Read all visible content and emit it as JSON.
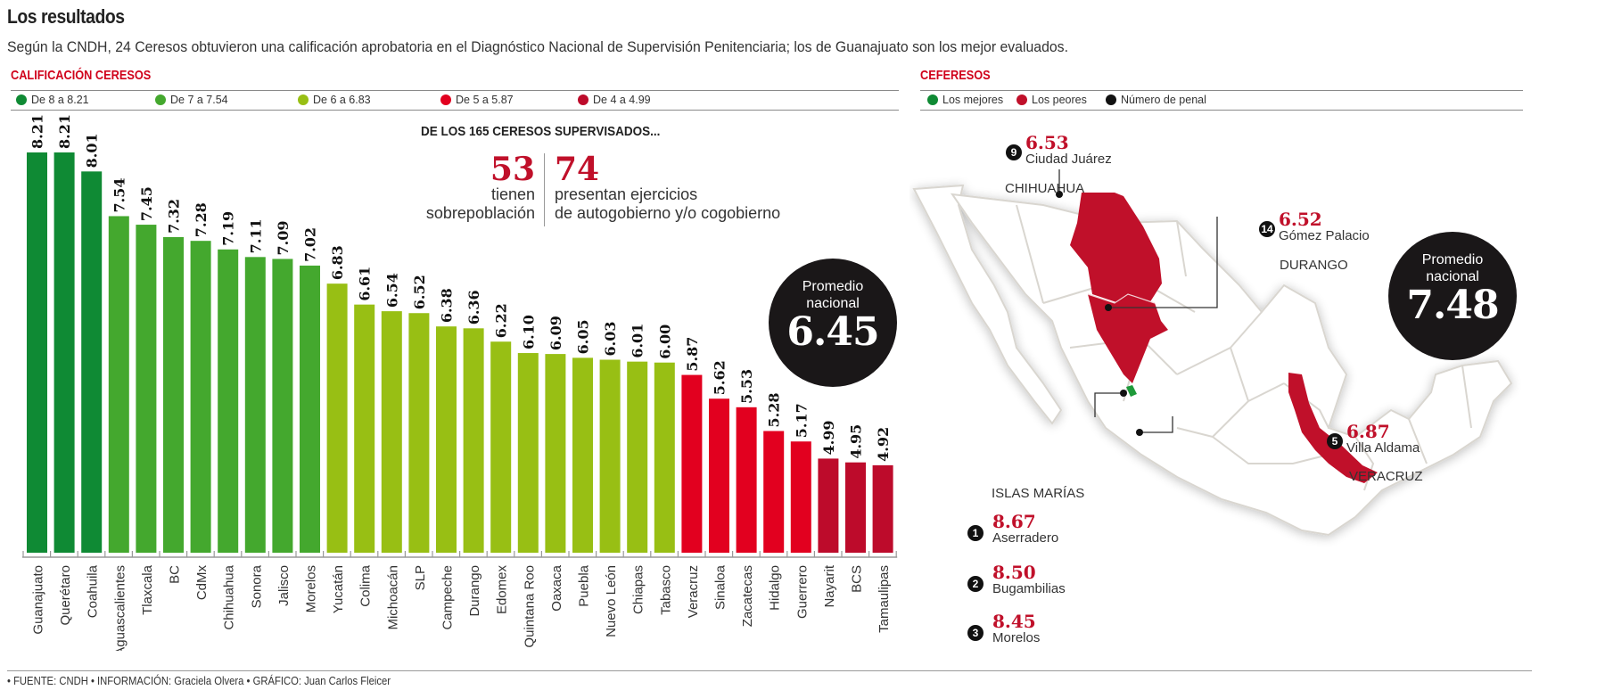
{
  "header": {
    "title": "Los resultados",
    "subtitle": "Según la CNDH, 24 Ceresos obtuvieron una calificación aprobatoria en el Diagnóstico Nacional de Supervisión Penitenciaria; los de Guanajuato son los mejor evaluados."
  },
  "ceresos": {
    "heading": "CALIFICACIÓN CERESOS",
    "legend": [
      {
        "label": "De 8 a 8.21",
        "color": "#0f8a34"
      },
      {
        "label": "De 7 a 7.54",
        "color": "#44a82e"
      },
      {
        "label": "De 6 a 6.83",
        "color": "#98bf14"
      },
      {
        "label": "De 5 a 5.87",
        "color": "#e2001f"
      },
      {
        "label": "De 4 a 4.99",
        "color": "#bd0b2b"
      }
    ],
    "stats_heading": "DE LOS 165 CERESOS SUPERVISADOS...",
    "stat1": {
      "value": "53",
      "line1": "tienen",
      "line2": "sobrepoblación"
    },
    "stat2": {
      "value": "74",
      "line1": "presentan ejercicios",
      "line2": "de autogobierno y/o cogobierno"
    },
    "average": {
      "label1": "Promedio",
      "label2": "nacional",
      "value": "6.45"
    }
  },
  "chart_data": {
    "type": "bar",
    "title": "CALIFICACIÓN CERESOS",
    "xlabel": "",
    "ylabel": "",
    "ylim": [
      4,
      8.21
    ],
    "grid": false,
    "legend_position": "top",
    "categories": [
      "Guanajuato",
      "Querétaro",
      "Coahuila",
      "Aguascalientes",
      "Tlaxcala",
      "BC",
      "CdMx",
      "Chihuahua",
      "Sonora",
      "Jalisco",
      "Morelos",
      "Yucatán",
      "Colima",
      "Michoacán",
      "SLP",
      "Campeche",
      "Durango",
      "Edomex",
      "Quintana Roo",
      "Oaxaca",
      "Puebla",
      "Nuevo León",
      "Chiapas",
      "Tabasco",
      "Veracruz",
      "Sinaloa",
      "Zacatecas",
      "Hidalgo",
      "Guerrero",
      "Nayarit",
      "BCS",
      "Tamaulipas"
    ],
    "values": [
      8.21,
      8.21,
      8.01,
      7.54,
      7.45,
      7.32,
      7.28,
      7.19,
      7.11,
      7.09,
      7.02,
      6.83,
      6.61,
      6.54,
      6.52,
      6.38,
      6.36,
      6.22,
      6.1,
      6.09,
      6.05,
      6.03,
      6.01,
      6.0,
      5.87,
      5.62,
      5.53,
      5.28,
      5.17,
      4.99,
      4.95,
      4.92
    ],
    "value_labels": [
      "8.21",
      "8.21",
      "8.01",
      "7.54",
      "7.45",
      "7.32",
      "7.28",
      "7.19",
      "7.11",
      "7.09",
      "7.02",
      "6.83",
      "6.61",
      "6.54",
      "6.52",
      "6.38",
      "6.36",
      "6.22",
      "6.10",
      "6.09",
      "6.05",
      "6.03",
      "6.01",
      "6.00",
      "5.87",
      "5.62",
      "5.53",
      "5.28",
      "5.17",
      "4.99",
      "4.95",
      "4.92"
    ],
    "national_average": 6.45
  },
  "ceferesos": {
    "heading": "CEFERESOS",
    "legend": [
      {
        "label": "Los mejores",
        "color": "#0f8a34"
      },
      {
        "label": "Los peores",
        "color": "#c0102a"
      },
      {
        "label": "Número de penal",
        "color": "#111111"
      }
    ],
    "worst": [
      {
        "rank": "9",
        "value": "6.53",
        "name": "Ciudad Juárez",
        "state": "CHIHUAHUA"
      },
      {
        "rank": "14",
        "value": "6.52",
        "name": "Gómez Palacio",
        "state": "DURANGO"
      },
      {
        "rank": "5",
        "value": "6.87",
        "name": "Villa Aldama",
        "state": "VERACRUZ"
      }
    ],
    "islands_label": "ISLAS MARÍAS",
    "best": [
      {
        "rank": "1",
        "value": "8.67",
        "name": "Aserradero"
      },
      {
        "rank": "2",
        "value": "8.50",
        "name": "Bugambilias"
      },
      {
        "rank": "3",
        "value": "8.45",
        "name": "Morelos"
      }
    ],
    "average": {
      "label1": "Promedio",
      "label2": "nacional",
      "value": "7.48"
    },
    "map_colors": {
      "highlight": "#c0102a",
      "islands": "#1e9a3a",
      "land": "#ffffff",
      "border": "#d9d6d0"
    }
  },
  "footer": "• FUENTE: CNDH • INFORMACIÓN: Graciela Olvera • GRÁFICO: Juan Carlos Fleicer"
}
